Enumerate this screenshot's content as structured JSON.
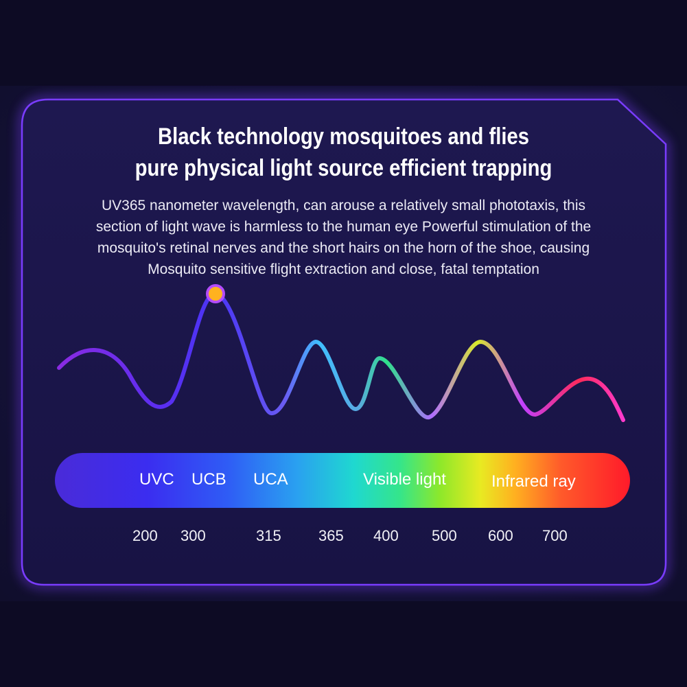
{
  "headline": {
    "line1": "Black technology mosquitoes and flies",
    "line2": "pure physical light source efficient trapping"
  },
  "description": {
    "line1": "UV365 nanometer wavelength, can arouse a relatively small phototaxis, this",
    "line2": "section of light wave is harmless to the human eye Powerful stimulation of the",
    "line3": "mosquito's retinal nerves and the short hairs on the horn of the shoe, causing",
    "line4": "Mosquito sensitive flight extraction and close, fatal temptation"
  },
  "spectrum_labels": {
    "uvc": "UVC",
    "ucb": "UCB",
    "uca": "UCA",
    "visible": "Visible light",
    "infrared": "Infrared ray"
  },
  "wavelength_ticks": {
    "t200": "200",
    "t300": "300",
    "t315": "315",
    "t365": "365",
    "t400": "400",
    "t500": "500",
    "t600": "600",
    "t700": "700"
  },
  "colors": {
    "background": "#0e0c26",
    "panel_border": "#7a3cff",
    "marker_fill": "#ffb21f",
    "marker_ring": "#b44cff"
  }
}
